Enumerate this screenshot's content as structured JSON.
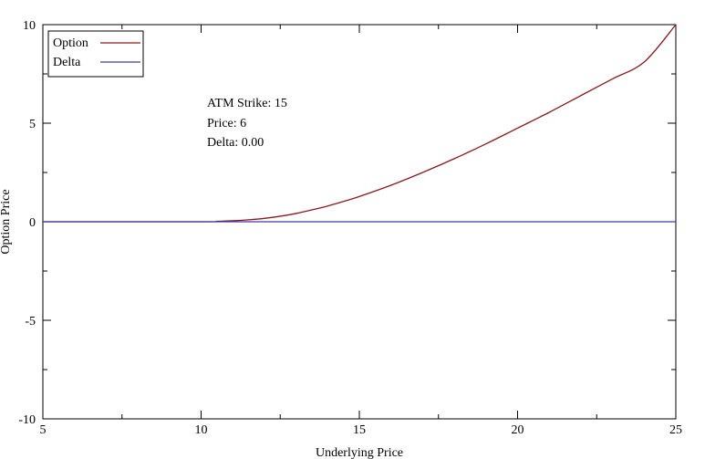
{
  "chart_data": {
    "type": "line",
    "xlabel": "Underlying Price",
    "ylabel": "Option Price",
    "xlim": [
      5,
      25
    ],
    "ylim": [
      -10,
      10
    ],
    "xticks": [
      5,
      10,
      15,
      20,
      25
    ],
    "xtick_labels": [
      "5",
      "10",
      "15",
      "20",
      "25"
    ],
    "yticks": [
      -10,
      -5,
      0,
      5,
      10
    ],
    "ytick_labels": [
      "-10",
      "-5",
      "0",
      "5",
      "10"
    ],
    "grid": false,
    "legend_position": "top-left",
    "series": [
      {
        "name": "Option",
        "color": "#8b1a1a",
        "x": [
          5,
          10,
          10.5,
          11,
          11.5,
          12,
          12.5,
          13,
          13.5,
          14,
          14.5,
          15,
          16,
          17,
          18,
          19,
          20,
          21,
          22,
          23,
          24,
          25
        ],
        "y": [
          0,
          0,
          0.02,
          0.05,
          0.1,
          0.17,
          0.28,
          0.42,
          0.6,
          0.8,
          1.03,
          1.28,
          1.85,
          2.5,
          3.2,
          3.95,
          4.75,
          5.55,
          6.4,
          7.25,
          8.1,
          10
        ]
      },
      {
        "name": "Delta",
        "color": "#3a3aa8",
        "x": [
          5,
          25
        ],
        "y": [
          0,
          0
        ]
      }
    ],
    "annotations": [
      "ATM Strike: 15",
      "Price: 6",
      "Delta: 0.00"
    ]
  }
}
